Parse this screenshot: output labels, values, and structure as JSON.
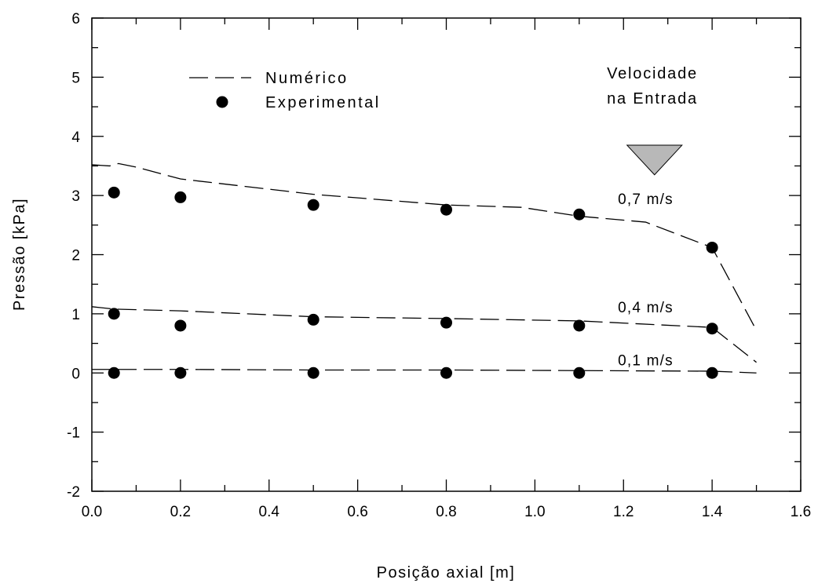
{
  "chart_data": {
    "type": "line",
    "title": "",
    "xlabel": "Posição axial [m]",
    "ylabel": "Pressão [kPa]",
    "xlim": [
      0.0,
      1.6
    ],
    "ylim": [
      -2,
      6
    ],
    "xticks": [
      "0.0",
      "0.2",
      "0.4",
      "0.6",
      "0.8",
      "1.0",
      "1.2",
      "1.4",
      "1.6"
    ],
    "yticks": [
      "-2",
      "-1",
      "0",
      "1",
      "2",
      "3",
      "4",
      "5",
      "6"
    ],
    "grid": false,
    "legend": {
      "placement": "top-left",
      "entries": [
        {
          "label": "Numérico",
          "style": "dashed-line"
        },
        {
          "label": "Experimental",
          "style": "filled-circle"
        }
      ]
    },
    "annotation": {
      "lines": [
        "Velocidade",
        "na Entrada"
      ],
      "x": 1.27,
      "y": 3.85,
      "marker": "downward-triangle",
      "color": "#b8b8b8"
    },
    "series": [
      {
        "name": "0,7 m/s",
        "label_at": [
          1.25,
          2.95
        ],
        "numerico": {
          "x": [
            0.0,
            0.04,
            0.06,
            0.1,
            0.2,
            0.5,
            0.8,
            0.97,
            1.1,
            1.25,
            1.4,
            1.5
          ],
          "y": [
            3.52,
            3.5,
            3.54,
            3.48,
            3.28,
            3.02,
            2.84,
            2.8,
            2.65,
            2.55,
            2.12,
            0.72
          ]
        },
        "experimental": {
          "x": [
            0.05,
            0.2,
            0.5,
            0.8,
            1.1,
            1.4
          ],
          "y": [
            3.05,
            2.97,
            2.84,
            2.76,
            2.68,
            2.12
          ]
        }
      },
      {
        "name": "0,4 m/s",
        "label_at": [
          1.25,
          1.12
        ],
        "numerico": {
          "x": [
            0.0,
            0.05,
            0.2,
            0.5,
            0.8,
            1.1,
            1.4,
            1.5
          ],
          "y": [
            1.12,
            1.08,
            1.05,
            0.95,
            0.92,
            0.88,
            0.77,
            0.18
          ]
        },
        "experimental": {
          "x": [
            0.05,
            0.2,
            0.5,
            0.8,
            1.1,
            1.4
          ],
          "y": [
            1.0,
            0.8,
            0.9,
            0.85,
            0.8,
            0.75
          ]
        }
      },
      {
        "name": "0,1 m/s",
        "label_at": [
          1.25,
          0.22
        ],
        "numerico": {
          "x": [
            0.0,
            0.2,
            0.5,
            0.8,
            1.1,
            1.4,
            1.5
          ],
          "y": [
            0.06,
            0.06,
            0.05,
            0.05,
            0.04,
            0.03,
            0.0
          ]
        },
        "experimental": {
          "x": [
            0.05,
            0.2,
            0.5,
            0.8,
            1.1,
            1.4
          ],
          "y": [
            0.0,
            0.0,
            0.0,
            0.0,
            0.0,
            0.0
          ]
        }
      }
    ]
  }
}
